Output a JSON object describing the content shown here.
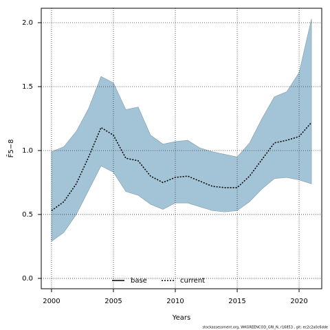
{
  "chart_data": {
    "type": "line",
    "x": [
      2000,
      2001,
      2002,
      2003,
      2004,
      2005,
      2006,
      2007,
      2008,
      2009,
      2010,
      2011,
      2012,
      2013,
      2014,
      2015,
      2016,
      2017,
      2018,
      2019,
      2020,
      2021
    ],
    "series": [
      {
        "name": "current",
        "color": "#000000",
        "style": "dotted",
        "values": [
          0.53,
          0.6,
          0.74,
          0.95,
          1.18,
          1.12,
          0.94,
          0.92,
          0.8,
          0.75,
          0.79,
          0.8,
          0.76,
          0.72,
          0.71,
          0.71,
          0.8,
          0.93,
          1.06,
          1.08,
          1.11,
          1.22
        ],
        "lower": [
          0.29,
          0.36,
          0.5,
          0.69,
          0.88,
          0.83,
          0.68,
          0.65,
          0.58,
          0.54,
          0.59,
          0.59,
          0.56,
          0.53,
          0.52,
          0.53,
          0.6,
          0.7,
          0.78,
          0.79,
          0.77,
          0.74
        ],
        "upper": [
          0.99,
          1.03,
          1.15,
          1.33,
          1.58,
          1.53,
          1.32,
          1.34,
          1.12,
          1.05,
          1.07,
          1.08,
          1.02,
          0.99,
          0.97,
          0.95,
          1.06,
          1.25,
          1.42,
          1.46,
          1.61,
          2.03
        ],
        "band_color": "#a3c4d6"
      }
    ],
    "legend": [
      {
        "label": "base",
        "style": "solid"
      },
      {
        "label": "current",
        "style": "dotted"
      }
    ],
    "xlabel": "Years",
    "ylabel": "F̄5−8",
    "xlim": [
      1999.17,
      2021.83
    ],
    "xticks": [
      2000,
      2005,
      2010,
      2015,
      2020
    ],
    "ylim": [
      -0.081,
      2.113
    ],
    "yticks": [
      {
        "value": 0,
        "label": "0.0"
      },
      {
        "value": 0.5,
        "label": "0.5"
      },
      {
        "value": 1,
        "label": "1.0"
      },
      {
        "value": 1.5,
        "label": "1.5"
      },
      {
        "value": 2,
        "label": "2.0"
      }
    ],
    "grid": true,
    "legend_position": "bottom",
    "footer": "stockassessment.org, WKGREENCOD_GRI_N, r16853 , git: ec2c2a0c6dde"
  }
}
